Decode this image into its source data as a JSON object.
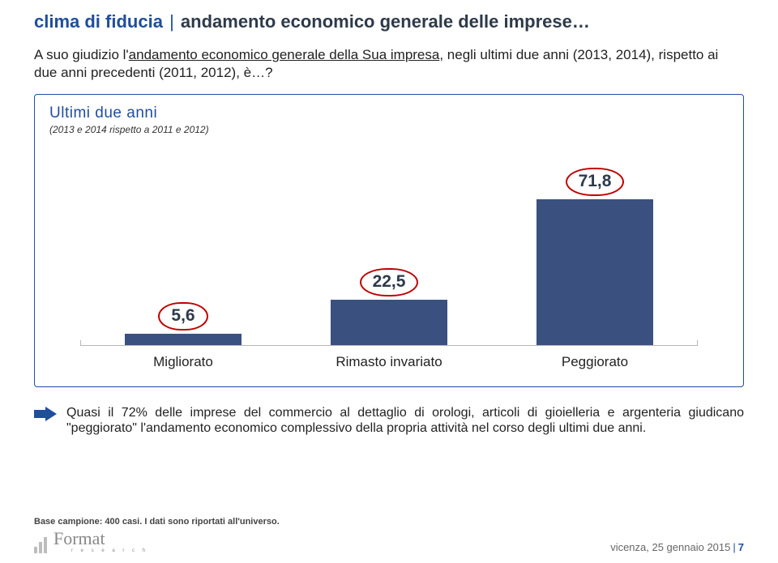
{
  "title": {
    "accent": "clima di fiducia",
    "separator": "|",
    "rest": "andamento economico generale delle imprese…"
  },
  "question": {
    "prefix": "A suo giudizio l'",
    "underlined": "andamento economico generale della Sua impresa",
    "suffix": ", negli ultimi due anni (2013, 2014), rispetto ai due anni precedenti (2011, 2012), è…?"
  },
  "box": {
    "title": "Ultimi due anni",
    "subtitle": "(2013 e 2014 rispetto a 2011 e 2012)"
  },
  "chart": {
    "type": "bar",
    "bar_color": "#3a517f",
    "max_value": 80,
    "bars": [
      {
        "label": "Migliorato",
        "value": 5.6,
        "value_text": "5,6",
        "callout_border": "#c00000"
      },
      {
        "label": "Rimasto invariato",
        "value": 22.5,
        "value_text": "22,5",
        "callout_border": "#c00000"
      },
      {
        "label": "Peggiorato",
        "value": 71.8,
        "value_text": "71,8",
        "callout_border": "#c00000"
      }
    ]
  },
  "note": "Quasi il 72% delle imprese del commercio al dettaglio di orologi, articoli di gioielleria e argenteria giudicano \"peggiorato\" l'andamento economico complessivo della propria attività nel corso degli ultimi due anni.",
  "footer": {
    "base": "Base campione: 400 casi. I dati sono riportati all'universo.",
    "logo_name": "Format",
    "logo_sub": "r e s e a r c h",
    "date": "vicenza, 25 gennaio 2015",
    "page": "7"
  },
  "colors": {
    "brand_blue": "#1f4e9c",
    "text_dark": "#2e3a4a"
  }
}
